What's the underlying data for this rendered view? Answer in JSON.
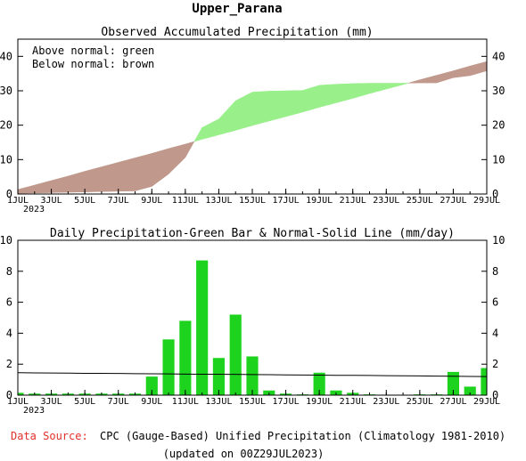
{
  "header": {
    "title": "Upper_Parana"
  },
  "colors": {
    "above_normal": "#99f08a",
    "below_normal": "#c0988c",
    "bar": "#1dd31d",
    "source_label": "#e0302a",
    "normal_line": "#000000"
  },
  "footer": {
    "source_label": "Data Source:",
    "source_text": "CPC (Gauge-Based) Unified Precipitation (Climatology 1981-2010)",
    "updated": "(updated on 00Z29JUL2023)"
  },
  "chart_data": [
    {
      "type": "area",
      "title": "Observed Accumulated Precipitation (mm)",
      "annotations": [
        "Above normal: green",
        "Below normal: brown"
      ],
      "x_tick_labels": [
        "1JUL",
        "3JUL",
        "5JUL",
        "7JUL",
        "9JUL",
        "11JUL",
        "13JUL",
        "15JUL",
        "17JUL",
        "19JUL",
        "21JUL",
        "23JUL",
        "25JUL",
        "27JUL",
        "29JUL"
      ],
      "x_sublabel": "2023",
      "ylim": [
        0,
        45
      ],
      "yticks": [
        0,
        10,
        20,
        30,
        40
      ],
      "grid": false,
      "x": [
        0,
        1,
        2,
        3,
        4,
        5,
        6,
        7,
        8,
        9,
        10,
        11,
        12,
        13,
        14,
        15,
        16,
        17,
        18,
        19,
        20,
        21,
        22,
        23,
        24,
        25,
        26,
        27,
        28
      ],
      "series": [
        {
          "name": "Observed",
          "values": [
            0.2,
            0.3,
            0.4,
            0.5,
            0.6,
            0.7,
            0.8,
            0.9,
            2.2,
            5.8,
            10.6,
            19.3,
            21.8,
            27.1,
            29.6,
            29.9,
            30.0,
            30.1,
            31.6,
            31.9,
            32.1,
            32.2,
            32.2,
            32.2,
            32.3,
            32.3,
            33.8,
            34.4,
            35.8
          ]
        },
        {
          "name": "Normal",
          "values": [
            1.3,
            2.6,
            3.9,
            5.2,
            6.6,
            7.9,
            9.2,
            10.5,
            11.8,
            13.2,
            14.5,
            15.9,
            17.2,
            18.5,
            19.9,
            21.2,
            22.5,
            23.8,
            25.2,
            26.5,
            27.8,
            29.2,
            30.5,
            31.8,
            33.2,
            34.5,
            35.8,
            37.2,
            38.5
          ]
        }
      ]
    },
    {
      "type": "bar",
      "title": "Daily Precipitation-Green Bar & Normal-Solid Line (mm/day)",
      "x_tick_labels": [
        "1JUL",
        "3JUL",
        "5JUL",
        "7JUL",
        "9JUL",
        "11JUL",
        "13JUL",
        "15JUL",
        "17JUL",
        "19JUL",
        "21JUL",
        "23JUL",
        "25JUL",
        "27JUL",
        "29JUL"
      ],
      "x_sublabel": "2023",
      "ylim": [
        0,
        10
      ],
      "yticks": [
        0,
        2,
        4,
        6,
        8,
        10
      ],
      "grid": false,
      "x": [
        0,
        1,
        2,
        3,
        4,
        5,
        6,
        7,
        8,
        9,
        10,
        11,
        12,
        13,
        14,
        15,
        16,
        17,
        18,
        19,
        20,
        21,
        22,
        23,
        24,
        25,
        26,
        27,
        28
      ],
      "series": [
        {
          "name": "Daily Precipitation",
          "values": [
            0.15,
            0.1,
            0.1,
            0.1,
            0.1,
            0.1,
            0.1,
            0.1,
            1.2,
            3.6,
            4.8,
            8.7,
            2.4,
            5.2,
            2.5,
            0.3,
            0.1,
            0.05,
            1.45,
            0.3,
            0.15,
            0.05,
            0.0,
            0.0,
            0.05,
            0.05,
            1.5,
            0.55,
            1.2
          ]
        },
        {
          "name": "Normal",
          "values": [
            1.45,
            1.44,
            1.43,
            1.42,
            1.41,
            1.41,
            1.4,
            1.39,
            1.38,
            1.37,
            1.36,
            1.35,
            1.35,
            1.34,
            1.33,
            1.32,
            1.31,
            1.3,
            1.29,
            1.28,
            1.28,
            1.27,
            1.26,
            1.25,
            1.24,
            1.23,
            1.22,
            1.21,
            1.2
          ]
        }
      ],
      "extra_bar_at_right_edge": 1.75
    }
  ]
}
